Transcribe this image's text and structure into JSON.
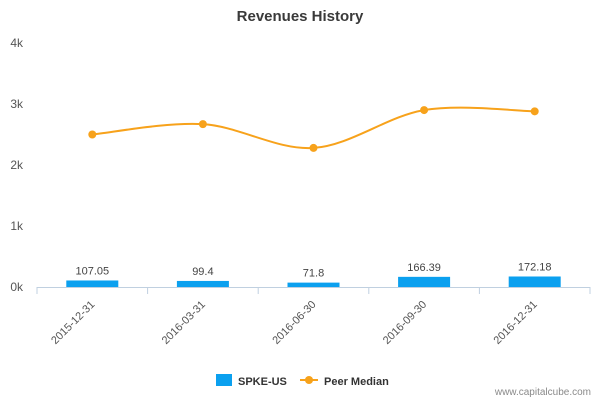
{
  "chart_data": {
    "type": "bar",
    "title": "Revenues History",
    "categories": [
      "2015-12-31",
      "2016-03-31",
      "2016-06-30",
      "2016-09-30",
      "2016-12-31"
    ],
    "y_tick_labels": [
      "0k",
      "1k",
      "2k",
      "3k",
      "4k"
    ],
    "ylim": [
      0,
      4000
    ],
    "grid": false,
    "legend_position": "bottom-center",
    "series": [
      {
        "name": "SPKE-US",
        "type": "bar",
        "color": "#0ba0ef",
        "values": [
          107.05,
          99.4,
          71.8,
          166.39,
          172.18
        ],
        "labels": [
          "107.05",
          "99.4",
          "71.8",
          "166.39",
          "172.18"
        ]
      },
      {
        "name": "Peer Median",
        "type": "line",
        "color": "#f7a21b",
        "values": [
          2500,
          2670,
          2280,
          2900,
          2880
        ]
      }
    ]
  },
  "watermark": "www.capitalcube.com"
}
